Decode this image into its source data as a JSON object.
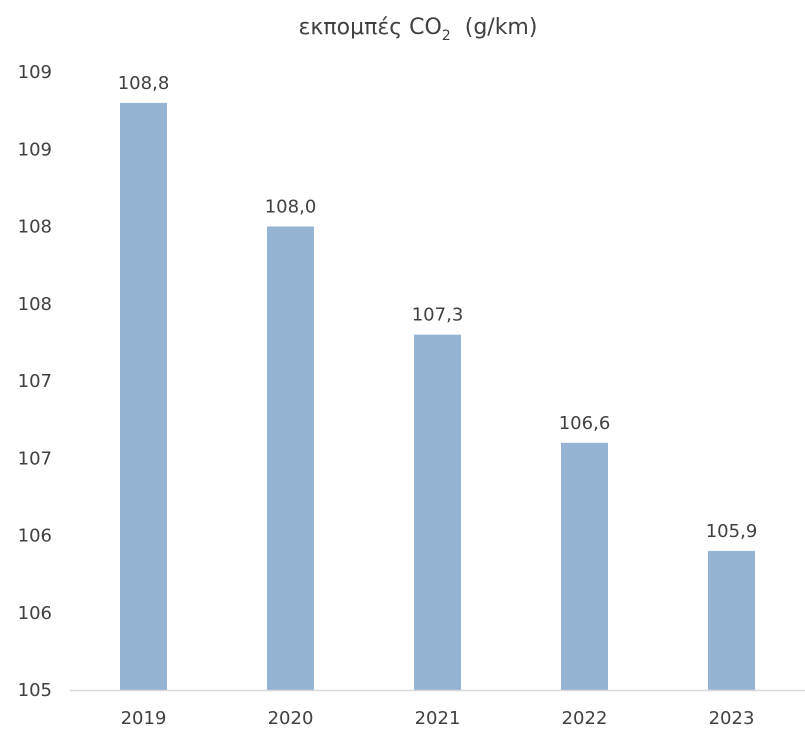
{
  "chart_data": {
    "type": "bar",
    "title": "εκπομπές CO",
    "title_subscript": "2",
    "title_unit": "(g/km)",
    "categories": [
      "2019",
      "2020",
      "2021",
      "2022",
      "2023"
    ],
    "values": [
      108.8,
      108.0,
      107.3,
      106.6,
      105.9
    ],
    "data_labels": [
      "108,8",
      "108,0",
      "107,3",
      "106,6",
      "105,9"
    ],
    "y_tick_labels": [
      "109",
      "109",
      "108",
      "108",
      "107",
      "107",
      "106",
      "106",
      "105"
    ],
    "ylim": [
      105,
      109
    ],
    "y_tick_step": 0.5,
    "grid": false,
    "legend": "none",
    "bar_color": "#95b3d2",
    "axis_color": "#d9d9d9",
    "text_color": "#404040"
  }
}
